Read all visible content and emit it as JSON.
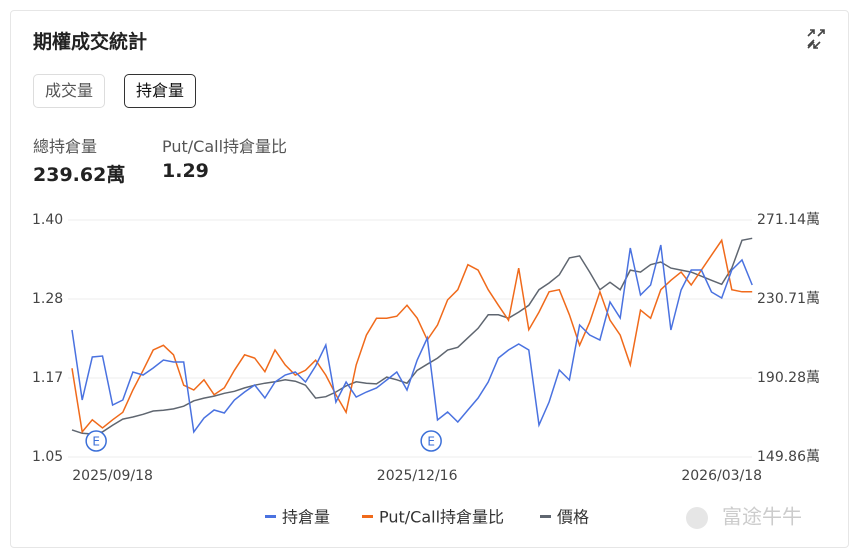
{
  "header": {
    "title": "期權成交統計"
  },
  "tabs": [
    "成交量",
    "持倉量"
  ],
  "stats": [
    {
      "label": "總持倉量",
      "value": "239.62萬"
    },
    {
      "label": "Put/Call持倉量比",
      "value": "1.29"
    }
  ],
  "watermark": "富途牛牛",
  "chart_data": {
    "type": "line",
    "categories": [
      null,
      null,
      null,
      null,
      "2025/09/18",
      null,
      null,
      null,
      null,
      null,
      null,
      null,
      null,
      null,
      null,
      null,
      null,
      null,
      null,
      null,
      null,
      null,
      null,
      null,
      null,
      null,
      null,
      null,
      null,
      null,
      null,
      null,
      null,
      null,
      "2025/12/16",
      null,
      null,
      null,
      null,
      null,
      null,
      null,
      null,
      null,
      null,
      null,
      null,
      null,
      null,
      null,
      null,
      null,
      null,
      null,
      null,
      null,
      null,
      null,
      null,
      null,
      null,
      null,
      null,
      null,
      "2026/03/18",
      null,
      null,
      null
    ],
    "series": [
      {
        "name": "持倉量",
        "color": "#4a72e0",
        "axis": "y2",
        "values": [
          214.85,
          179.03,
          201.04,
          201.55,
          176.48,
          179.03,
          193.36,
          191.83,
          195.41,
          199.5,
          198.48,
          198.48,
          162.66,
          169.82,
          173.92,
          172.38,
          179.03,
          183.13,
          186.71,
          180.06,
          188.25,
          191.83,
          193.36,
          188.25,
          196.43,
          207.17,
          178.01,
          188.25,
          180.57,
          183.13,
          185.17,
          189.27,
          193.36,
          184.15,
          199.5,
          210.76,
          168.8,
          172.89,
          167.78,
          173.92,
          180.06,
          188.25,
          200.53,
          204.62,
          207.69,
          204.62,
          166.24,
          178.01,
          194.38,
          189.27,
          217.41,
          212.29,
          209.74,
          229.18,
          220.99,
          256.81,
          232.76,
          237.88,
          258.35,
          214.85,
          235.32,
          245.55,
          245.55,
          234.3,
          231.23,
          245.55,
          250.67,
          237.88
        ]
      },
      {
        "name": "Put/Call持倉量比",
        "color": "#f06a1b",
        "values": [
          1.181,
          1.087,
          1.105,
          1.093,
          1.105,
          1.116,
          1.149,
          1.178,
          1.208,
          1.215,
          1.201,
          1.156,
          1.149,
          1.164,
          1.142,
          1.152,
          1.178,
          1.201,
          1.196,
          1.176,
          1.208,
          1.186,
          1.171,
          1.178,
          1.193,
          1.171,
          1.142,
          1.116,
          1.186,
          1.23,
          1.255,
          1.255,
          1.258,
          1.274,
          1.255,
          1.223,
          1.245,
          1.282,
          1.297,
          1.334,
          1.326,
          1.297,
          1.274,
          1.252,
          1.329,
          1.238,
          1.264,
          1.294,
          1.297,
          1.26,
          1.215,
          1.249,
          1.294,
          1.252,
          1.23,
          1.186,
          1.267,
          1.255,
          1.297,
          1.311,
          1.323,
          1.304,
          1.326,
          1.348,
          1.37,
          1.297,
          1.294,
          1.294
        ]
      },
      {
        "name": "價格",
        "color": "#5f6670",
        "values": [
          1.09,
          1.085,
          1.084,
          1.087,
          1.097,
          1.106,
          1.109,
          1.113,
          1.118,
          1.119,
          1.121,
          1.125,
          1.133,
          1.137,
          1.14,
          1.144,
          1.147,
          1.152,
          1.156,
          1.159,
          1.161,
          1.164,
          1.162,
          1.156,
          1.137,
          1.139,
          1.146,
          1.155,
          1.161,
          1.159,
          1.158,
          1.168,
          1.164,
          1.159,
          1.178,
          1.187,
          1.196,
          1.208,
          1.212,
          1.226,
          1.24,
          1.26,
          1.26,
          1.255,
          1.264,
          1.274,
          1.297,
          1.307,
          1.319,
          1.344,
          1.347,
          1.323,
          1.297,
          1.308,
          1.297,
          1.326,
          1.323,
          1.334,
          1.338,
          1.329,
          1.326,
          1.323,
          1.317,
          1.311,
          1.305,
          1.329,
          1.37,
          1.373
        ]
      }
    ],
    "ylim": [
      1.05,
      1.4
    ],
    "yticks": [
      1.05,
      {
        "value": 1.1667,
        "label": "1.17"
      },
      {
        "value": 1.2833,
        "label": "1.28"
      },
      {
        "value": 1.4,
        "label": "1.40"
      }
    ],
    "y2lim": [
      149.86,
      271.14
    ],
    "y2ticks": [
      {
        "value": 149.86,
        "label": "149.86萬"
      },
      {
        "value": 190.28,
        "label": "190.28萬"
      },
      {
        "value": 230.71,
        "label": "230.71萬"
      },
      {
        "value": 271.14,
        "label": "271.14萬"
      }
    ],
    "grid": true,
    "annotations": [
      {
        "x": 1,
        "label": "E"
      },
      {
        "x": 34,
        "label": "E"
      }
    ]
  }
}
